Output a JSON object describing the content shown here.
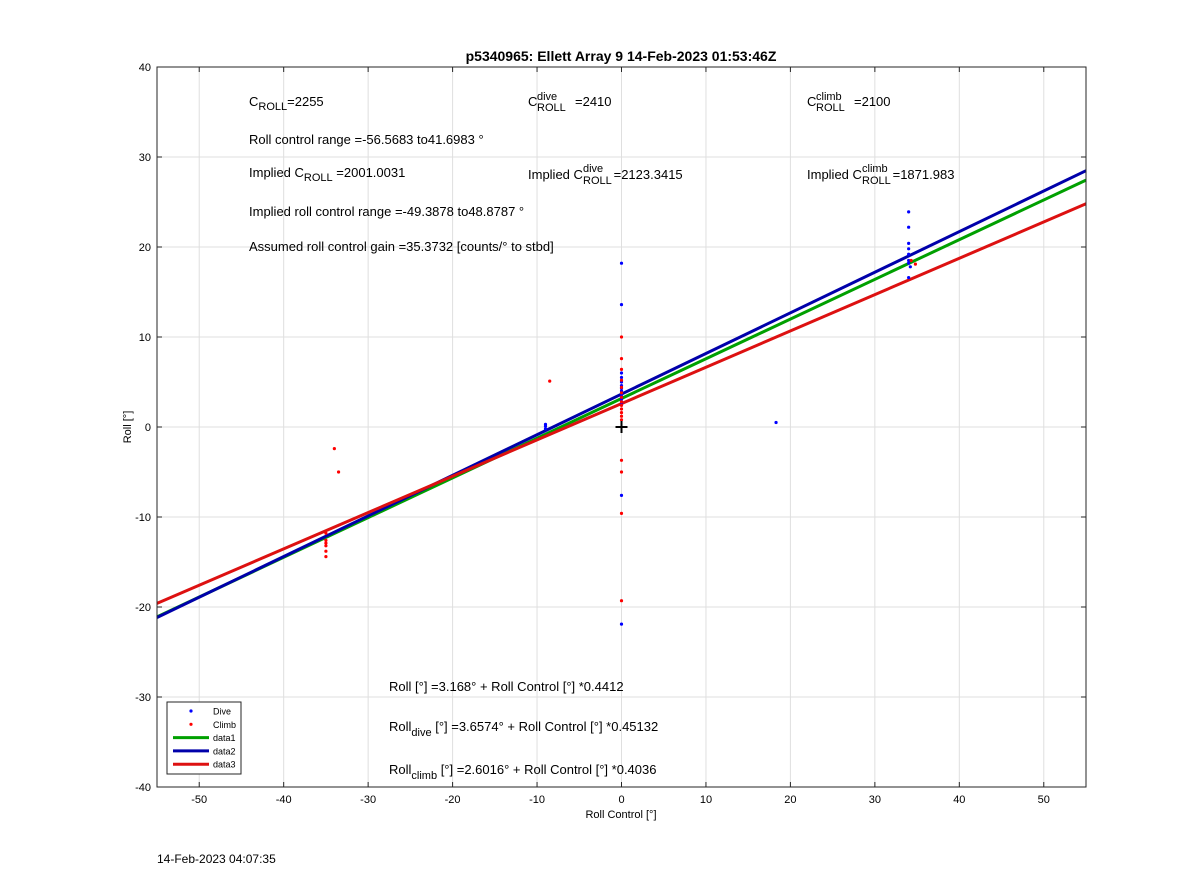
{
  "chart_data": {
    "type": "scatter",
    "title": "p5340965: Ellett Array 9 14-Feb-2023 01:53:46Z",
    "xlabel": "Roll Control [°]",
    "ylabel": "Roll [°]",
    "xlim": [
      -55,
      55
    ],
    "ylim": [
      -40,
      40
    ],
    "xticks": [
      -50,
      -40,
      -30,
      -20,
      -10,
      0,
      10,
      20,
      30,
      40,
      50
    ],
    "yticks": [
      -40,
      -30,
      -20,
      -10,
      0,
      10,
      20,
      30,
      40
    ],
    "grid": true,
    "legend_position": "bottom-left",
    "series": [
      {
        "name": "Dive",
        "kind": "points",
        "color": "#0000ff",
        "points": [
          [
            -9,
            0.3
          ],
          [
            -9,
            0.1
          ],
          [
            -9,
            -0.2
          ],
          [
            0,
            18.2
          ],
          [
            0,
            13.6
          ],
          [
            0,
            6
          ],
          [
            0,
            5.5
          ],
          [
            0,
            5
          ],
          [
            0,
            4.6
          ],
          [
            0,
            4.3
          ],
          [
            0,
            4
          ],
          [
            0,
            3.7
          ],
          [
            0,
            3.4
          ],
          [
            0,
            3.1
          ],
          [
            0,
            2.8
          ],
          [
            0,
            2.5
          ],
          [
            0,
            -7.6
          ],
          [
            0,
            -21.9
          ],
          [
            18.3,
            0.5
          ],
          [
            34,
            23.9
          ],
          [
            34,
            22.2
          ],
          [
            34,
            20.4
          ],
          [
            34,
            19.8
          ],
          [
            34,
            19.2
          ],
          [
            34,
            18.5
          ],
          [
            34,
            18.2
          ],
          [
            34.2,
            17.8
          ],
          [
            34,
            16.6
          ]
        ]
      },
      {
        "name": "Climb",
        "kind": "points",
        "color": "#ff0000",
        "points": [
          [
            -34,
            -2.4
          ],
          [
            -33.5,
            -5
          ],
          [
            -35,
            -11.8
          ],
          [
            -35,
            -12.6
          ],
          [
            -35,
            -12.9
          ],
          [
            -35,
            -13.2
          ],
          [
            -35,
            -13.8
          ],
          [
            -35,
            -14.4
          ],
          [
            -8.5,
            5.1
          ],
          [
            0,
            10
          ],
          [
            0,
            7.6
          ],
          [
            0,
            6.4
          ],
          [
            0,
            5.2
          ],
          [
            0,
            4.4
          ],
          [
            0,
            3.8
          ],
          [
            0,
            3.3
          ],
          [
            0,
            2.8
          ],
          [
            0,
            2.4
          ],
          [
            0,
            2
          ],
          [
            0,
            1.6
          ],
          [
            0,
            1.2
          ],
          [
            0,
            0.8
          ],
          [
            0,
            -3.7
          ],
          [
            0,
            -5
          ],
          [
            0,
            -9.6
          ],
          [
            0,
            -19.3
          ],
          [
            34.3,
            18.5
          ],
          [
            34.8,
            18.1
          ]
        ]
      },
      {
        "name": "data1",
        "kind": "line",
        "color": "#00a000",
        "intercept": 3.168,
        "slope": 0.4412
      },
      {
        "name": "data2",
        "kind": "line",
        "color": "#0000aa",
        "intercept": 3.6574,
        "slope": 0.45132
      },
      {
        "name": "data3",
        "kind": "line",
        "color": "#dd1111",
        "intercept": 2.6016,
        "slope": 0.4036
      }
    ],
    "marker": {
      "x": 0,
      "y": 0,
      "symbol": "+"
    },
    "annotations": {
      "croll_c": "C",
      "croll_sub": "ROLL",
      "croll_val": "=2255",
      "cdive_c": "C",
      "cdive_sup": "dive",
      "cdive_sub": "ROLL",
      "cdive_val": "=2410",
      "cclimb_c": "C",
      "cclimb_sup": "climb",
      "cclimb_sub": "ROLL",
      "cclimb_val": "=2100",
      "range": "Roll control range =-56.5683 to41.6983 °",
      "impl_croll_pre": "Implied C",
      "impl_croll_sub": "ROLL",
      "impl_croll_val": " =2001.0031",
      "impl_cdive_pre": "Implied C",
      "impl_cdive_sup": "dive",
      "impl_cdive_sub": "ROLL",
      "impl_cdive_val": " =2123.3415",
      "impl_cclimb_pre": "Implied C",
      "impl_cclimb_sup": "climb",
      "impl_cclimb_sub": "ROLL",
      "impl_cclimb_val": " =1871.983",
      "impl_range": "Implied roll control range =-49.3878 to48.8787 °",
      "gain": "Assumed roll control gain =35.3732 [counts/° to stbd]",
      "eq1": "Roll [°] =3.168° + Roll Control [°] *0.4412",
      "eq2_pre": "Roll",
      "eq2_sub": "dive",
      "eq2_post": " [°] =3.6574° + Roll Control [°] *0.45132",
      "eq3_pre": "Roll",
      "eq3_sub": "climb",
      "eq3_post": " [°] =2.6016° + Roll Control [°] *0.4036"
    }
  },
  "footer_timestamp": "14-Feb-2023 04:07:35"
}
